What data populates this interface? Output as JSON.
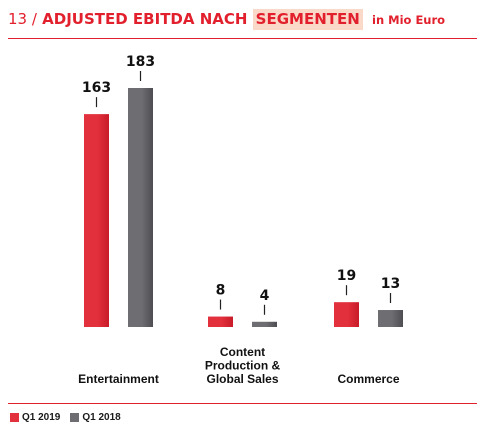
{
  "header": {
    "number": "13 /",
    "title_main": "ADJUSTED EBITDA NACH",
    "title_highlight": "SEGMENTEN",
    "unit": "in Mio Euro"
  },
  "colors": {
    "accent": "#e2202d",
    "highlight": "#fbd9c9",
    "series_2019": "#e2303c",
    "series_2018": "#6e6e72"
  },
  "chart_data": {
    "type": "bar",
    "categories": [
      "Entertainment",
      "Content Production & Global Sales",
      "Commerce"
    ],
    "category_lines": [
      [
        "Entertainment"
      ],
      [
        "Content",
        "Production &",
        "Global Sales"
      ],
      [
        "Commerce"
      ]
    ],
    "series": [
      {
        "name": "Q1 2019",
        "values": [
          163,
          8,
          19
        ],
        "color": "#e2303c"
      },
      {
        "name": "Q1 2018",
        "values": [
          183,
          4,
          13
        ],
        "color": "#6e6e72"
      }
    ],
    "ylim": [
      0,
      183
    ],
    "grid": false,
    "legend_position": "bottom-left"
  }
}
